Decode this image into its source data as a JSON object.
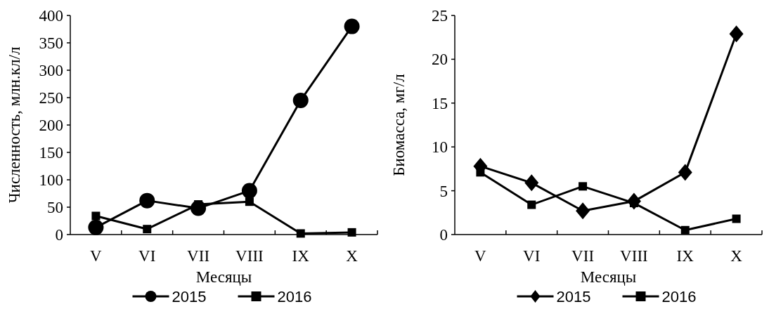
{
  "chart_data": [
    {
      "type": "line",
      "xlabel": "Месяцы",
      "ylabel": "Численность, млн.кл/л",
      "categories": [
        "V",
        "VI",
        "VII",
        "VIII",
        "IX",
        "X"
      ],
      "ylim": [
        0,
        400
      ],
      "yticks": [
        0,
        50,
        100,
        150,
        200,
        250,
        300,
        350,
        400
      ],
      "legend": "bottom",
      "grid": false,
      "series": [
        {
          "name": "2015",
          "color": "#000000",
          "marker": "circle",
          "values": [
            13,
            62,
            48,
            80,
            245,
            380
          ]
        },
        {
          "name": "2016",
          "color": "#000000",
          "marker": "square",
          "values": [
            34,
            10,
            55,
            60,
            2,
            4
          ]
        }
      ]
    },
    {
      "type": "line",
      "xlabel": "Месяцы",
      "ylabel": "Биомасса, мг/л",
      "categories": [
        "V",
        "VI",
        "VII",
        "VIII",
        "IX",
        "X"
      ],
      "ylim": [
        0,
        25
      ],
      "yticks": [
        0,
        5,
        10,
        15,
        20,
        25
      ],
      "legend": "bottom",
      "grid": false,
      "series": [
        {
          "name": "2015",
          "color": "#000000",
          "marker": "diamond",
          "values": [
            7.8,
            5.9,
            2.7,
            3.8,
            7.1,
            22.9
          ]
        },
        {
          "name": "2016",
          "color": "#000000",
          "marker": "square",
          "values": [
            7.1,
            3.4,
            5.5,
            3.6,
            0.5,
            1.8
          ]
        }
      ]
    }
  ]
}
